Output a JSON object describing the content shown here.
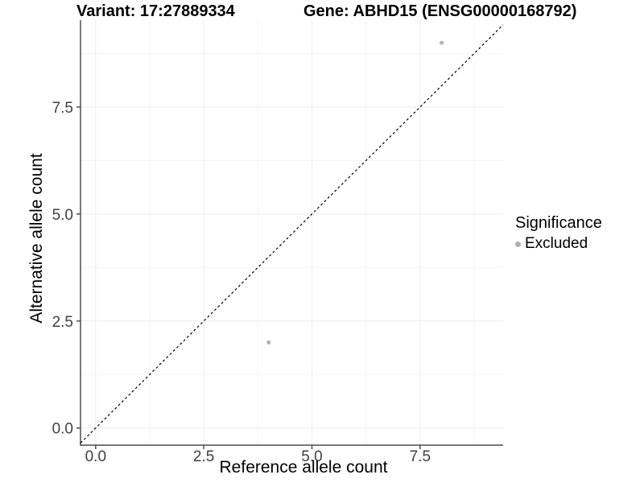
{
  "header": {
    "variant_title": "Variant: 17:27889334",
    "gene_title": "Gene: ABHD15 (ENSG00000168792)"
  },
  "chart_data": {
    "type": "scatter",
    "title_left": "Variant: 17:27889334",
    "title_right": "Gene: ABHD15 (ENSG00000168792)",
    "xlabel": "Reference allele count",
    "ylabel": "Alternative allele count",
    "xlim": [
      -0.35,
      9.42
    ],
    "ylim": [
      -0.4,
      9.53
    ],
    "x_ticks": [
      0.0,
      2.5,
      5.0,
      7.5
    ],
    "x_tick_labels": [
      "0.0",
      "2.5",
      "5.0",
      "7.5"
    ],
    "y_ticks": [
      0.0,
      2.5,
      5.0,
      7.5
    ],
    "y_tick_labels": [
      "0.0",
      "2.5",
      "5.0",
      "7.5"
    ],
    "x_minor_ticks": [
      1.25,
      3.75,
      6.25,
      8.75
    ],
    "y_minor_ticks": [
      1.25,
      3.75,
      6.25,
      8.75
    ],
    "grid": "major+minor",
    "points": [
      {
        "x": 4,
        "y": 2,
        "series": "Excluded"
      },
      {
        "x": 8,
        "y": 9,
        "series": "Excluded"
      }
    ],
    "reference_line": {
      "type": "identity",
      "style": "dashed",
      "color": "#000000"
    },
    "legend": {
      "title": "Significance",
      "position": "right",
      "items": [
        {
          "label": "Excluded",
          "color": "#b0b0b0"
        }
      ]
    },
    "colors": {
      "point": "#b5b5b5",
      "grid_major": "#ebebeb",
      "grid_minor": "#f5f5f5",
      "axis_line": "#4d4d4d",
      "tick_mark": "#4d4d4d",
      "tick_label": "#404040",
      "background": "#ffffff"
    }
  }
}
